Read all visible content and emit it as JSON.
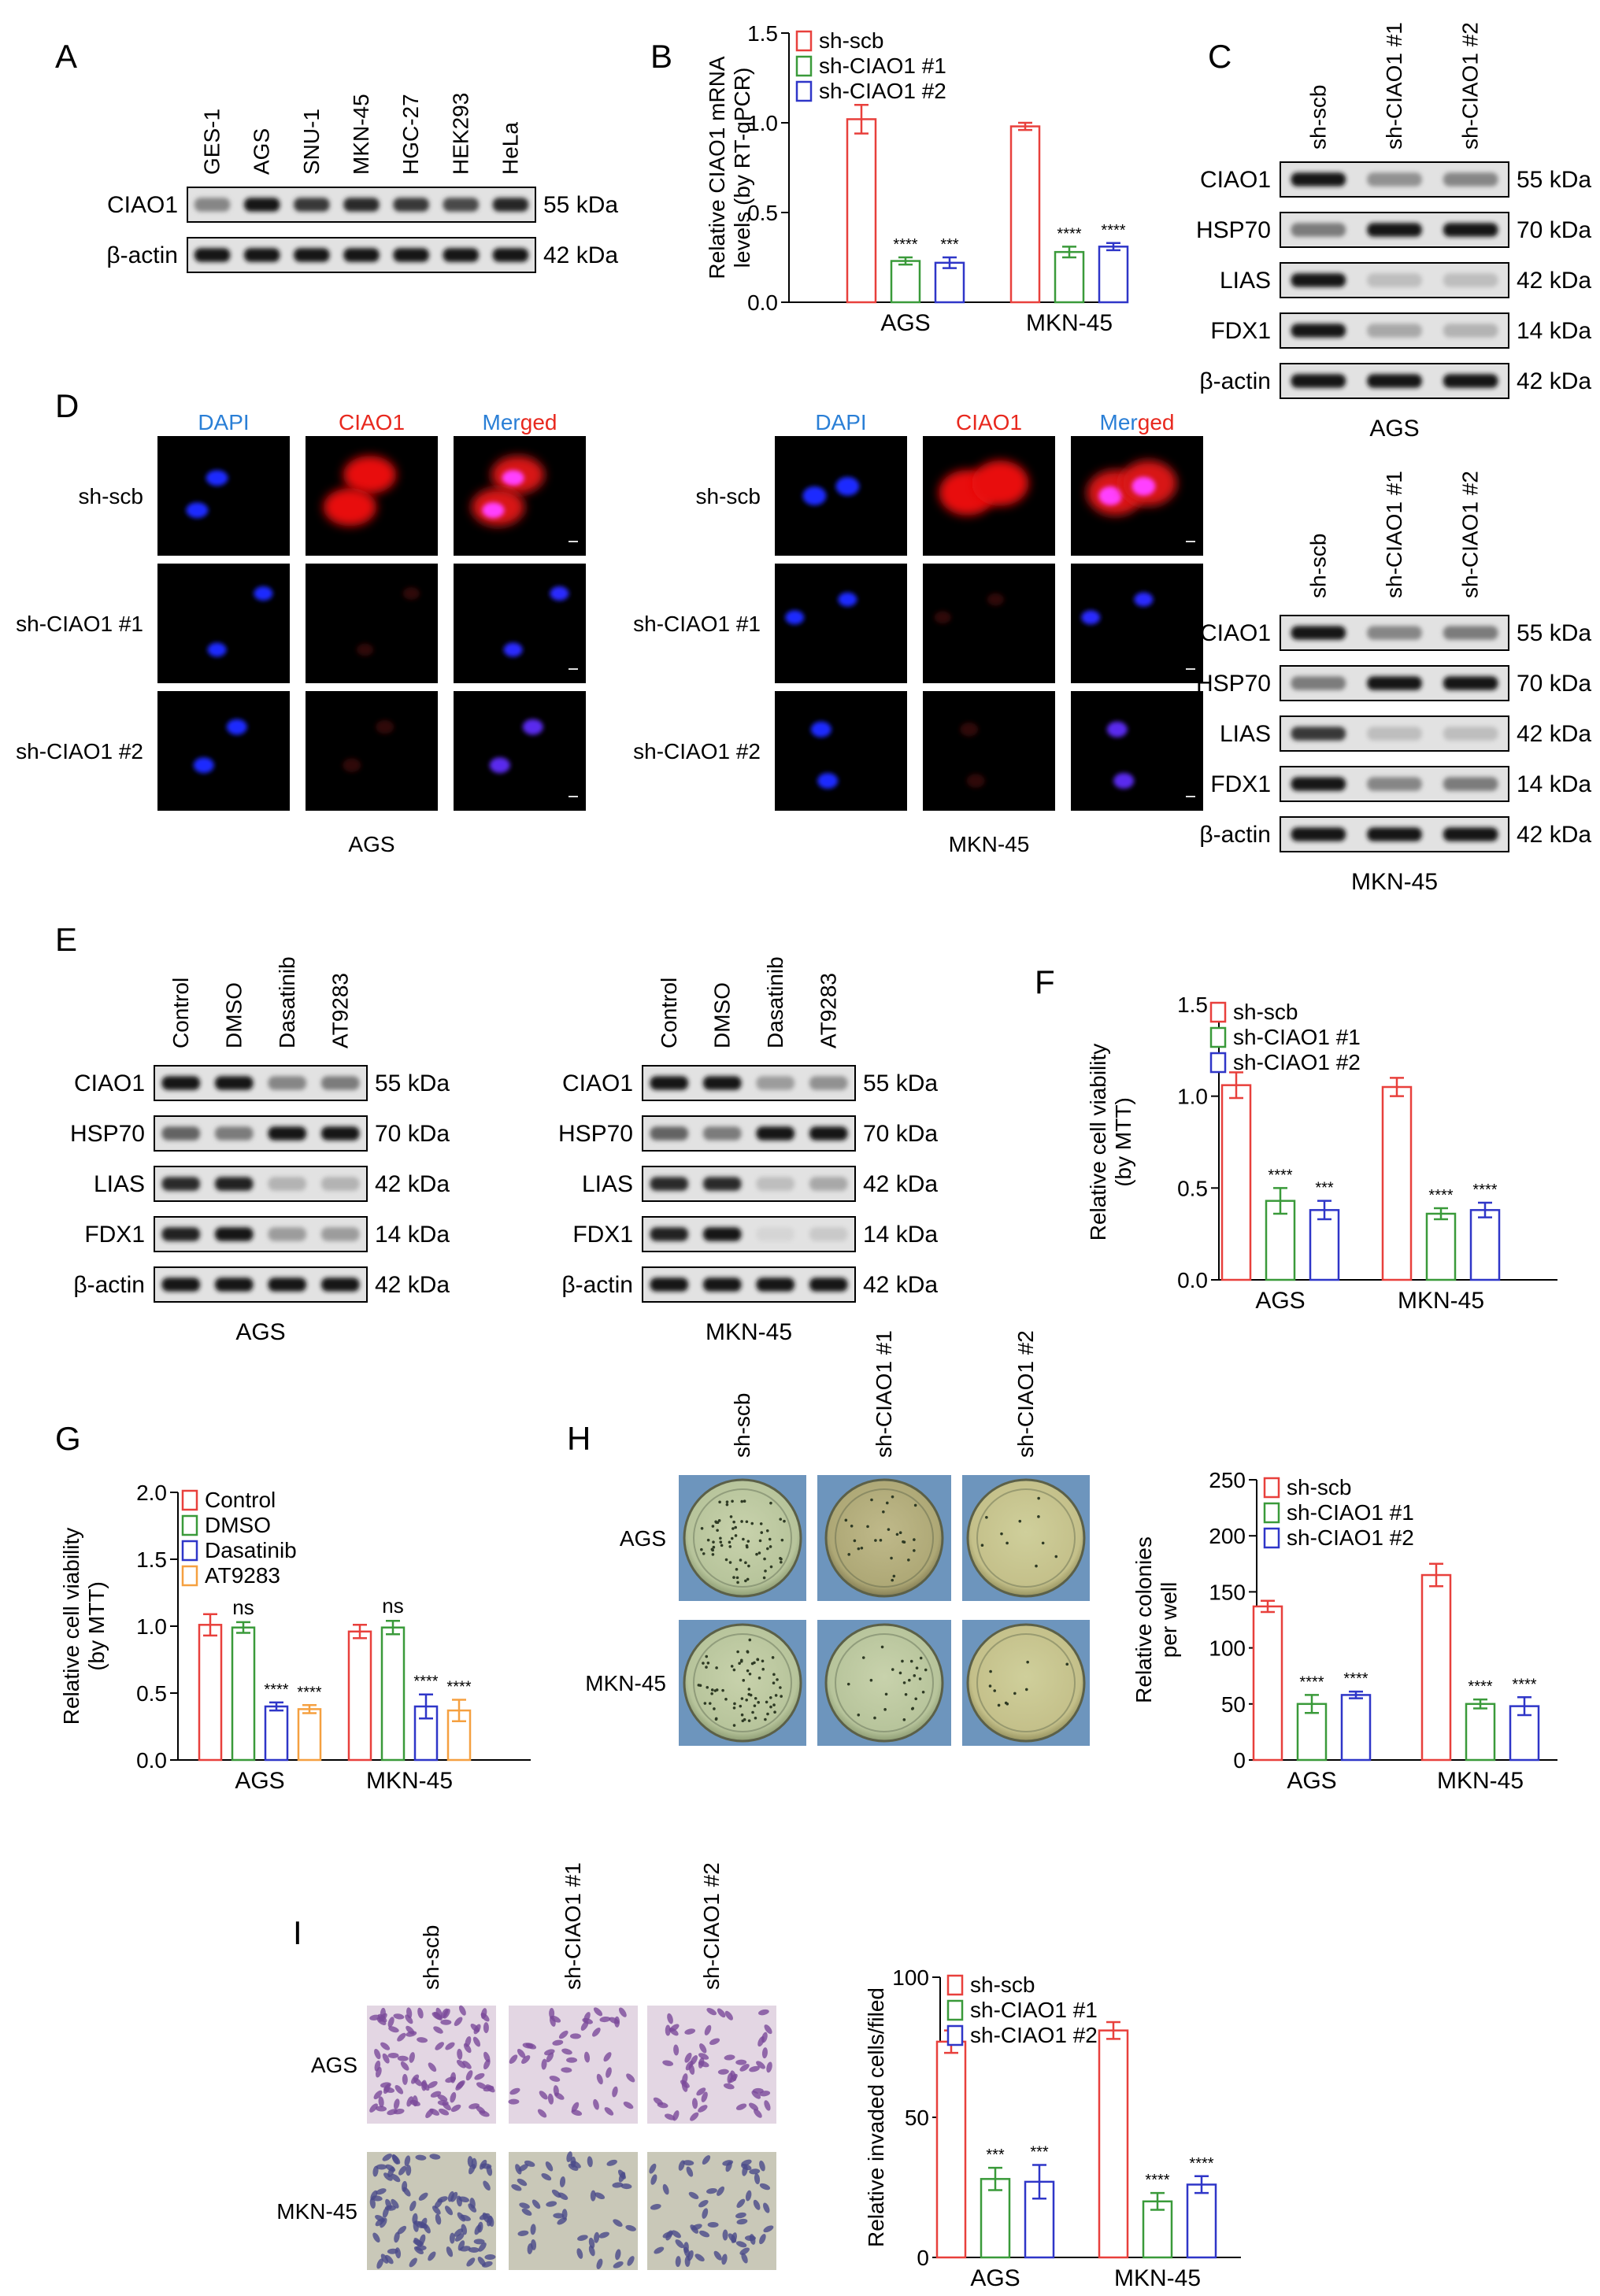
{
  "panels": [
    "A",
    "B",
    "C",
    "D",
    "E",
    "F",
    "G",
    "H",
    "I"
  ],
  "common": {
    "sh_scb": "sh-scb",
    "sh1": "sh-CIAO1 #1",
    "sh2": "sh-CIAO1 #2",
    "ags": "AGS",
    "mkn": "MKN-45"
  },
  "blots": {
    "A": {
      "lanes": [
        "GES-1",
        "AGS",
        "SNU-1",
        "MKN-45",
        "HGC-27",
        "HEK293",
        "HeLa"
      ],
      "rows": [
        {
          "protein": "CIAO1",
          "size": "55 kDa",
          "intensity": [
            0.45,
            0.95,
            0.8,
            0.85,
            0.8,
            0.72,
            0.88
          ]
        },
        {
          "protein": "β-actin",
          "size": "42 kDa",
          "intensity": [
            0.95,
            0.95,
            0.95,
            0.95,
            0.95,
            0.95,
            0.95
          ]
        }
      ]
    },
    "C1": {
      "lanes": [
        "sh-scb",
        "sh-CIAO1 #1",
        "sh-CIAO1 #2"
      ],
      "caption": "AGS",
      "rows": [
        {
          "protein": "CIAO1",
          "size": "55 kDa",
          "intensity": [
            0.95,
            0.4,
            0.45
          ]
        },
        {
          "protein": "HSP70",
          "size": "70 kDa",
          "intensity": [
            0.5,
            0.95,
            0.95
          ]
        },
        {
          "protein": "LIAS",
          "size": "42 kDa",
          "intensity": [
            0.95,
            0.2,
            0.2
          ]
        },
        {
          "protein": "FDX1",
          "size": "14 kDa",
          "intensity": [
            0.95,
            0.3,
            0.25
          ]
        },
        {
          "protein": "β-actin",
          "size": "42 kDa",
          "intensity": [
            0.95,
            0.95,
            0.95
          ]
        }
      ]
    },
    "C2": {
      "lanes": [
        "sh-scb",
        "sh-CIAO1 #1",
        "sh-CIAO1 #2"
      ],
      "caption": "MKN-45",
      "rows": [
        {
          "protein": "CIAO1",
          "size": "55 kDa",
          "intensity": [
            0.95,
            0.45,
            0.5
          ]
        },
        {
          "protein": "HSP70",
          "size": "70 kDa",
          "intensity": [
            0.5,
            0.95,
            0.95
          ]
        },
        {
          "protein": "LIAS",
          "size": "42 kDa",
          "intensity": [
            0.8,
            0.2,
            0.2
          ]
        },
        {
          "protein": "FDX1",
          "size": "14 kDa",
          "intensity": [
            0.95,
            0.45,
            0.5
          ]
        },
        {
          "protein": "β-actin",
          "size": "42 kDa",
          "intensity": [
            0.95,
            0.95,
            0.95
          ]
        }
      ]
    },
    "E1": {
      "lanes": [
        "Control",
        "DMSO",
        "Dasatinib",
        "AT9283"
      ],
      "caption": "AGS",
      "rows": [
        {
          "protein": "CIAO1",
          "size": "55 kDa",
          "intensity": [
            0.95,
            0.95,
            0.45,
            0.5
          ]
        },
        {
          "protein": "HSP70",
          "size": "70 kDa",
          "intensity": [
            0.6,
            0.5,
            0.95,
            0.95
          ]
        },
        {
          "protein": "LIAS",
          "size": "42 kDa",
          "intensity": [
            0.85,
            0.9,
            0.25,
            0.25
          ]
        },
        {
          "protein": "FDX1",
          "size": "14 kDa",
          "intensity": [
            0.9,
            0.95,
            0.35,
            0.35
          ]
        },
        {
          "protein": "β-actin",
          "size": "42 kDa",
          "intensity": [
            0.95,
            0.95,
            0.95,
            0.95
          ]
        }
      ]
    },
    "E2": {
      "lanes": [
        "Control",
        "DMSO",
        "Dasatinib",
        "AT9283"
      ],
      "caption": "MKN-45",
      "rows": [
        {
          "protein": "CIAO1",
          "size": "55 kDa",
          "intensity": [
            0.95,
            0.95,
            0.35,
            0.4
          ]
        },
        {
          "protein": "HSP70",
          "size": "70 kDa",
          "intensity": [
            0.6,
            0.5,
            0.95,
            0.95
          ]
        },
        {
          "protein": "LIAS",
          "size": "42 kDa",
          "intensity": [
            0.85,
            0.85,
            0.2,
            0.3
          ]
        },
        {
          "protein": "FDX1",
          "size": "14 kDa",
          "intensity": [
            0.9,
            0.95,
            0.1,
            0.15
          ]
        },
        {
          "protein": "β-actin",
          "size": "42 kDa",
          "intensity": [
            0.95,
            0.95,
            0.95,
            0.95
          ]
        }
      ]
    }
  },
  "panel_D": {
    "columns": [
      "DAPI",
      "CIAO1",
      "Merged"
    ],
    "merged_part1": "Mer",
    "merged_part2": "ged",
    "rows": [
      "sh-scb",
      "sh-CIAO1 #1",
      "sh-CIAO1 #2"
    ],
    "captions": [
      "AGS",
      "MKN-45"
    ]
  },
  "panel_H": {
    "rows": [
      "AGS",
      "MKN-45"
    ],
    "columns": [
      "sh-scb",
      "sh-CIAO1 #1",
      "sh-CIAO1 #2"
    ]
  },
  "panel_I": {
    "rows": [
      "AGS",
      "MKN-45"
    ],
    "columns": [
      "sh-scb",
      "sh-CIAO1 #1",
      "sh-CIAO1 #2"
    ]
  },
  "colors": {
    "red": "#e8403c",
    "green": "#3a9a3a",
    "blue": "#2f36c8",
    "orange": "#f5a040"
  },
  "chart_data": [
    {
      "panel": "B",
      "type": "bar",
      "categories": [
        "AGS",
        "MKN-45"
      ],
      "ylabel": "Relative CIAO1 mRNA levels (by RT-qPCR)",
      "ylabel_lines": [
        "Relative CIAO1 mRNA",
        "levels (by RT-qPCR)"
      ],
      "ylim": [
        0,
        1.5
      ],
      "yticks": [
        "0.0",
        "0.5",
        "1.0",
        "1.5"
      ],
      "legend": "top-left",
      "series": [
        {
          "name": "sh-scb",
          "color": "#e8403c",
          "values": [
            1.02,
            0.98
          ],
          "errors": [
            0.08,
            0.02
          ],
          "stars": [
            "",
            ""
          ]
        },
        {
          "name": "sh-CIAO1 #1",
          "color": "#3a9a3a",
          "values": [
            0.23,
            0.28
          ],
          "errors": [
            0.02,
            0.03
          ],
          "stars": [
            "****",
            "****"
          ]
        },
        {
          "name": "sh-CIAO1 #2",
          "color": "#2f36c8",
          "values": [
            0.22,
            0.31
          ],
          "errors": [
            0.03,
            0.02
          ],
          "stars": [
            "***",
            "****"
          ]
        }
      ]
    },
    {
      "panel": "F",
      "type": "bar",
      "categories": [
        "AGS",
        "MKN-45"
      ],
      "ylabel": "Relative cell viability (by MTT)",
      "ylabel_lines": [
        "Relative cell viability",
        "(by MTT)"
      ],
      "ylim": [
        0,
        1.5
      ],
      "yticks": [
        "0.0",
        "0.5",
        "1.0",
        "1.5"
      ],
      "legend": "top-left",
      "series": [
        {
          "name": "sh-scb",
          "color": "#e8403c",
          "values": [
            1.06,
            1.05
          ],
          "errors": [
            0.07,
            0.05
          ],
          "stars": [
            "",
            ""
          ]
        },
        {
          "name": "sh-CIAO1 #1",
          "color": "#3a9a3a",
          "values": [
            0.43,
            0.36
          ],
          "errors": [
            0.07,
            0.03
          ],
          "stars": [
            "****",
            "****"
          ]
        },
        {
          "name": "sh-CIAO1 #2",
          "color": "#2f36c8",
          "values": [
            0.38,
            0.38
          ],
          "errors": [
            0.05,
            0.04
          ],
          "stars": [
            "***",
            "****"
          ]
        }
      ]
    },
    {
      "panel": "G",
      "type": "bar",
      "categories": [
        "AGS",
        "MKN-45"
      ],
      "ylabel": "Relative cell viability (by MTT)",
      "ylabel_lines": [
        "Relative cell viability",
        "(by MTT)"
      ],
      "ylim": [
        0,
        2.0
      ],
      "yticks": [
        "0.0",
        "0.5",
        "1.0",
        "1.5",
        "2.0"
      ],
      "legend": "top-left",
      "series": [
        {
          "name": "Control",
          "color": "#e8403c",
          "values": [
            1.01,
            0.96
          ],
          "errors": [
            0.08,
            0.05
          ],
          "stars": [
            "",
            ""
          ]
        },
        {
          "name": "DMSO",
          "color": "#3a9a3a",
          "values": [
            0.99,
            0.99
          ],
          "errors": [
            0.04,
            0.05
          ],
          "stars": [
            "ns",
            "ns"
          ]
        },
        {
          "name": "Dasatinib",
          "color": "#2f36c8",
          "values": [
            0.4,
            0.4
          ],
          "errors": [
            0.03,
            0.09
          ],
          "stars": [
            "****",
            "****"
          ]
        },
        {
          "name": "AT9283",
          "color": "#f5a040",
          "values": [
            0.38,
            0.37
          ],
          "errors": [
            0.03,
            0.08
          ],
          "stars": [
            "****",
            "****"
          ]
        }
      ]
    },
    {
      "panel": "H",
      "type": "bar",
      "categories": [
        "AGS",
        "MKN-45"
      ],
      "ylabel": "Relative colonies per well",
      "ylabel_lines": [
        "Relative colonies",
        "per well"
      ],
      "ylim": [
        0,
        250
      ],
      "yticks": [
        "0",
        "50",
        "100",
        "150",
        "200",
        "250"
      ],
      "legend": "top-left",
      "series": [
        {
          "name": "sh-scb",
          "color": "#e8403c",
          "values": [
            137,
            165
          ],
          "errors": [
            5,
            10
          ],
          "stars": [
            "",
            ""
          ]
        },
        {
          "name": "sh-CIAO1 #1",
          "color": "#3a9a3a",
          "values": [
            50,
            50
          ],
          "errors": [
            8,
            4
          ],
          "stars": [
            "****",
            "****"
          ]
        },
        {
          "name": "sh-CIAO1 #2",
          "color": "#2f36c8",
          "values": [
            58,
            48
          ],
          "errors": [
            3,
            8
          ],
          "stars": [
            "****",
            "****"
          ]
        }
      ]
    },
    {
      "panel": "I",
      "type": "bar",
      "categories": [
        "AGS",
        "MKN-45"
      ],
      "ylabel": "Relative invaded cells/filed",
      "ylabel_lines": [
        "Relative invaded cells/filed"
      ],
      "ylim": [
        0,
        100
      ],
      "yticks": [
        "0",
        "50",
        "100"
      ],
      "legend": "top-left",
      "series": [
        {
          "name": "sh-scb",
          "color": "#e8403c",
          "values": [
            77,
            81
          ],
          "errors": [
            4,
            3
          ],
          "stars": [
            "",
            ""
          ]
        },
        {
          "name": "sh-CIAO1 #1",
          "color": "#3a9a3a",
          "values": [
            28,
            20
          ],
          "errors": [
            4,
            3
          ],
          "stars": [
            "***",
            "****"
          ]
        },
        {
          "name": "sh-CIAO1 #2",
          "color": "#2f36c8",
          "values": [
            27,
            26
          ],
          "errors": [
            6,
            3
          ],
          "stars": [
            "***",
            "****"
          ]
        }
      ]
    }
  ]
}
